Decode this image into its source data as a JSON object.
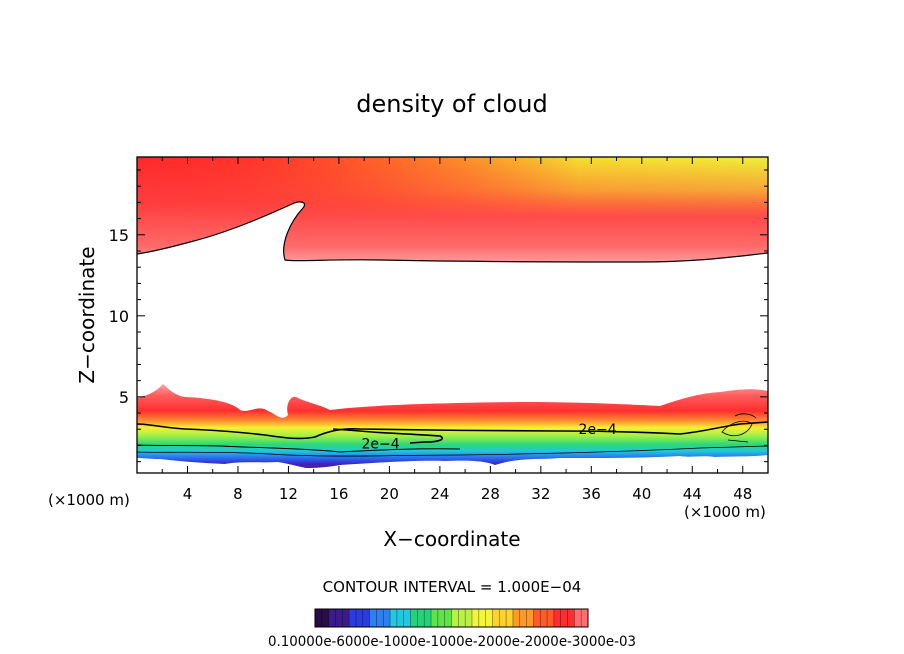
{
  "chart_data": {
    "type": "heatmap",
    "title": "density of cloud",
    "xlabel": "X−coordinate",
    "ylabel": "Z−coordinate",
    "x_unit_left": "(×1000 m)",
    "x_unit_right": "(×1000 m)",
    "xlim": [
      0,
      50
    ],
    "ylim": [
      0.3,
      19.8
    ],
    "x_ticks": [
      4,
      8,
      12,
      16,
      20,
      24,
      28,
      32,
      36,
      40,
      44,
      48
    ],
    "y_ticks": [
      5,
      10,
      15
    ],
    "contour_interval_text": "CONTOUR INTERVAL = 1.000E−04",
    "contour_labels": [
      {
        "text": "2e−4",
        "x": 36.5,
        "z": 2.7
      },
      {
        "text": "2e−4",
        "x": 19.3,
        "z": 1.8
      }
    ],
    "colorbar_label_text": "0.10000e-6000e-1000e-1000e-2000e-2000e-3000e-03",
    "colorbar_colors": [
      "#2a0c46",
      "#3c1a8c",
      "#2a3ce0",
      "#2e7ff0",
      "#22c8e0",
      "#25d27a",
      "#5fe34a",
      "#b9f046",
      "#f3f53a",
      "#ffd22e",
      "#ff9a28",
      "#ff5a2a",
      "#ff2d2d",
      "#ff6e6e"
    ]
  }
}
